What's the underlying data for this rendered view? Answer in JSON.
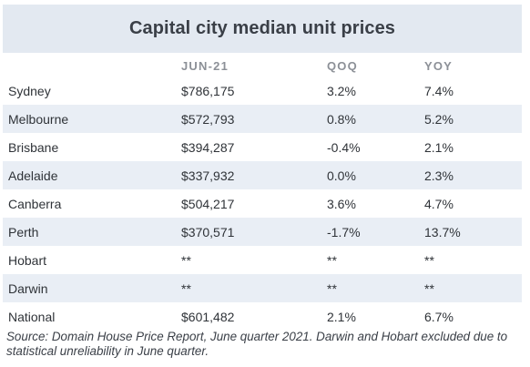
{
  "title": "Capital city median unit prices",
  "columns": [
    "",
    "JUN-21",
    "QOQ",
    "YOY"
  ],
  "rows": [
    {
      "city": "Sydney",
      "price": "$786,175",
      "qoq": "3.2%",
      "yoy": "7.4%"
    },
    {
      "city": "Melbourne",
      "price": "$572,793",
      "qoq": "0.8%",
      "yoy": "5.2%"
    },
    {
      "city": "Brisbane",
      "price": "$394,287",
      "qoq": "-0.4%",
      "yoy": "2.1%"
    },
    {
      "city": "Adelaide",
      "price": "$337,932",
      "qoq": "0.0%",
      "yoy": "2.3%"
    },
    {
      "city": "Canberra",
      "price": "$504,217",
      "qoq": "3.6%",
      "yoy": "4.7%"
    },
    {
      "city": "Perth",
      "price": "$370,571",
      "qoq": "-1.7%",
      "yoy": "13.7%"
    },
    {
      "city": "Hobart",
      "price": "**",
      "qoq": "**",
      "yoy": "**"
    },
    {
      "city": "Darwin",
      "price": "**",
      "qoq": "**",
      "yoy": "**"
    },
    {
      "city": "National",
      "price": "$601,482",
      "qoq": "2.1%",
      "yoy": "6.7%"
    }
  ],
  "source": "Source: Domain House Price Report, June quarter 2021. Darwin and Hobart excluded due to statistical unreliability in June quarter.",
  "colors": {
    "title_bg": "#e3e9f1",
    "stripe": "#e9eef5",
    "header_text": "#8c9097"
  }
}
